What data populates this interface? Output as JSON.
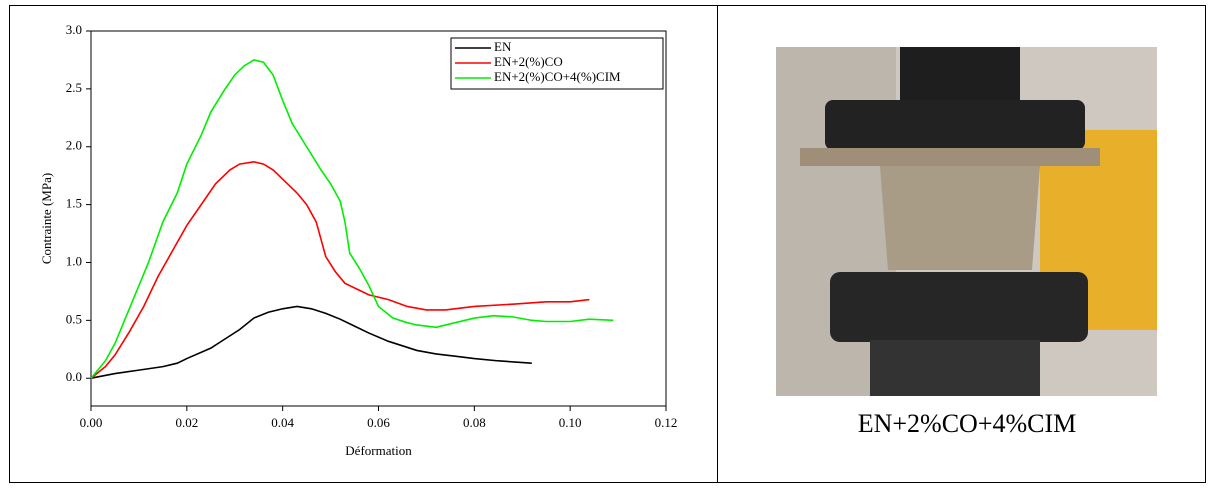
{
  "chart_data": {
    "type": "line",
    "xlabel": "Déformation",
    "ylabel": "Contrainte (MPa)",
    "xlim": [
      0,
      0.12
    ],
    "ylim": [
      -0.24,
      3.0
    ],
    "xticks": [
      {
        "value": 0,
        "label": "0.00"
      },
      {
        "value": 0.02,
        "label": "0.02"
      },
      {
        "value": 0.04,
        "label": "0.04"
      },
      {
        "value": 0.06,
        "label": "0.06"
      },
      {
        "value": 0.08,
        "label": "0.08"
      },
      {
        "value": 0.1,
        "label": "0.10"
      },
      {
        "value": 0.12,
        "label": "0.12"
      }
    ],
    "yticks": [
      {
        "value": 0,
        "label": "0.0"
      },
      0.5,
      {
        "value": 1,
        "label": "1.0"
      },
      1.5,
      {
        "value": 2,
        "label": "2.0"
      },
      2.5,
      {
        "value": 3,
        "label": "3.0"
      }
    ],
    "legend": "upper right",
    "series": [
      {
        "name": "EN",
        "color": "#000000",
        "x": [
          0,
          0.005,
          0.01,
          0.015,
          0.018,
          0.02,
          0.025,
          0.028,
          0.031,
          0.034,
          0.037,
          0.04,
          0.043,
          0.046,
          0.049,
          0.052,
          0.055,
          0.058,
          0.062,
          0.065,
          0.068,
          0.072,
          0.076,
          0.08,
          0.085,
          0.092
        ],
        "values": [
          0,
          0.04,
          0.07,
          0.1,
          0.13,
          0.17,
          0.26,
          0.34,
          0.42,
          0.52,
          0.57,
          0.6,
          0.62,
          0.6,
          0.56,
          0.51,
          0.45,
          0.39,
          0.32,
          0.28,
          0.24,
          0.21,
          0.19,
          0.17,
          0.15,
          0.13
        ]
      },
      {
        "name": "EN+2(%)CO",
        "color": "#ff0000",
        "x": [
          0,
          0.003,
          0.005,
          0.008,
          0.011,
          0.014,
          0.017,
          0.02,
          0.023,
          0.026,
          0.029,
          0.031,
          0.034,
          0.036,
          0.038,
          0.04,
          0.043,
          0.045,
          0.047,
          0.048,
          0.049,
          0.051,
          0.053,
          0.056,
          0.058,
          0.062,
          0.066,
          0.07,
          0.074,
          0.08,
          0.088,
          0.095,
          0.1,
          0.104
        ],
        "values": [
          0,
          0.1,
          0.2,
          0.4,
          0.62,
          0.88,
          1.1,
          1.32,
          1.5,
          1.68,
          1.8,
          1.85,
          1.87,
          1.85,
          1.8,
          1.72,
          1.6,
          1.5,
          1.35,
          1.2,
          1.05,
          0.92,
          0.82,
          0.76,
          0.72,
          0.68,
          0.62,
          0.59,
          0.59,
          0.62,
          0.64,
          0.66,
          0.66,
          0.68
        ]
      },
      {
        "name": "EN+2(%)CO+4(%)CIM",
        "color": "#00ee00",
        "x": [
          0,
          0.003,
          0.005,
          0.007,
          0.009,
          0.012,
          0.015,
          0.018,
          0.02,
          0.023,
          0.025,
          0.028,
          0.03,
          0.032,
          0.034,
          0.036,
          0.038,
          0.04,
          0.042,
          0.045,
          0.048,
          0.05,
          0.052,
          0.053,
          0.054,
          0.056,
          0.058,
          0.06,
          0.063,
          0.066,
          0.068,
          0.072,
          0.076,
          0.08,
          0.084,
          0.088,
          0.092,
          0.095,
          0.1,
          0.104,
          0.109
        ],
        "values": [
          0,
          0.15,
          0.3,
          0.5,
          0.7,
          1.0,
          1.35,
          1.6,
          1.85,
          2.1,
          2.3,
          2.5,
          2.62,
          2.7,
          2.75,
          2.73,
          2.62,
          2.4,
          2.2,
          2.0,
          1.8,
          1.68,
          1.53,
          1.35,
          1.08,
          0.95,
          0.8,
          0.62,
          0.52,
          0.48,
          0.46,
          0.44,
          0.48,
          0.52,
          0.54,
          0.53,
          0.5,
          0.49,
          0.49,
          0.51,
          0.5
        ]
      }
    ]
  },
  "photo": {
    "caption": "EN+2%CO+4%CIM"
  }
}
